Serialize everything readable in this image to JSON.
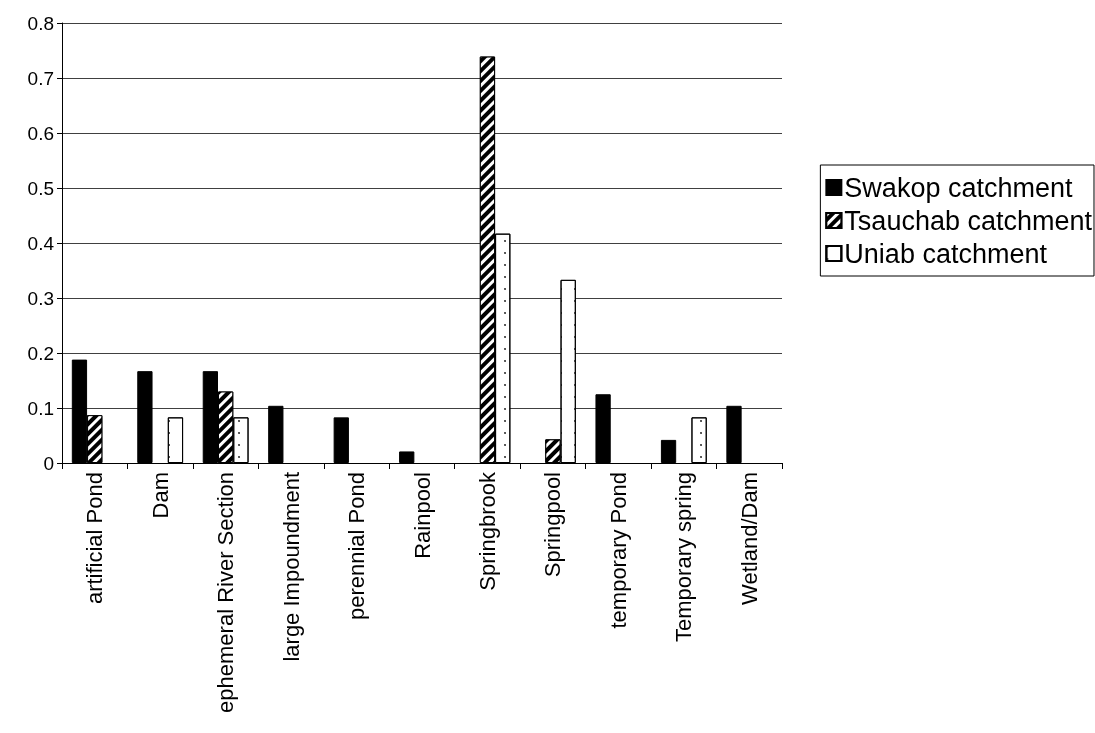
{
  "chart_data": {
    "type": "bar",
    "categories": [
      "artificial Pond",
      "Dam",
      "ephemeral River Section",
      "large Impoundment",
      "perennial Pond",
      "Rainpool",
      "Springbrook",
      "Springpool",
      "temporary Pond",
      "Temporary spring",
      "Wetland/Dam"
    ],
    "series": [
      {
        "name": "Swakop catchment",
        "color": "#000000",
        "values": [
          0.188,
          0.167,
          0.167,
          0.104,
          0.083,
          0.021,
          null,
          null,
          0.125,
          0.042,
          0.104
        ]
      },
      {
        "name": "Tsauchab catchment",
        "color": "#000000",
        "values": [
          0.087,
          null,
          0.13,
          null,
          null,
          null,
          0.739,
          0.043,
          null,
          null,
          null
        ]
      },
      {
        "name": "Uniab catchment",
        "color": "#ffffff",
        "values": [
          null,
          0.083,
          0.083,
          null,
          null,
          null,
          0.417,
          0.333,
          null,
          0.083,
          null
        ]
      }
    ],
    "ylim": [
      0,
      0.8
    ],
    "yticks": [
      0,
      0.1,
      0.2,
      0.3,
      0.4,
      0.5,
      0.6,
      0.7,
      0.8
    ],
    "grid": "y",
    "legend": "right"
  }
}
